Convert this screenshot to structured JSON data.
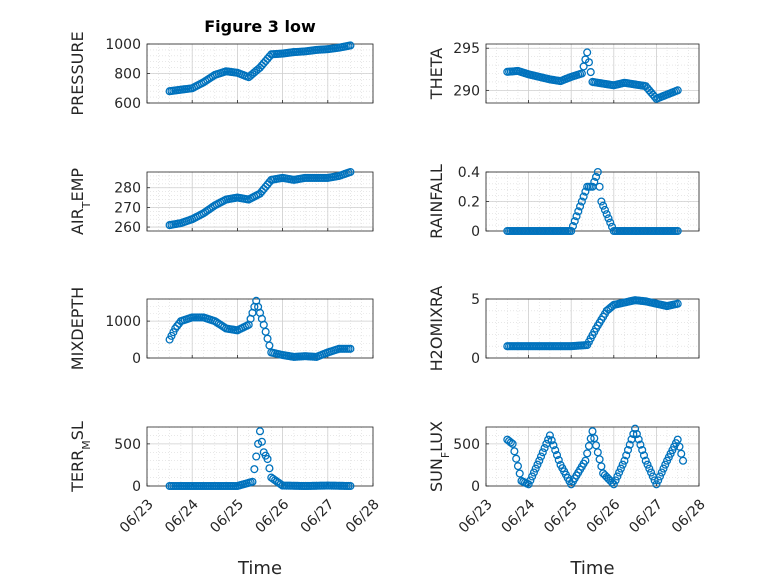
{
  "figure_title": "Figure 3 low",
  "marker_color": "#0072BD",
  "chart_data": [
    {
      "type": "scatter",
      "ylabel": "PRESSURE",
      "ylabel_sub": "",
      "xlabel": "",
      "title": "Figure 3 low",
      "xlim": [
        "06/23",
        "06/28"
      ],
      "ylim": [
        600,
        1000
      ],
      "yticks": [
        600,
        800,
        1000
      ],
      "grid": true,
      "points": [
        [
          "06/23 12:00",
          680
        ],
        [
          "06/23 18:00",
          690
        ],
        [
          "06/24 00:00",
          700
        ],
        [
          "06/24 06:00",
          740
        ],
        [
          "06/24 12:00",
          790
        ],
        [
          "06/24 18:00",
          815
        ],
        [
          "06/25 00:00",
          805
        ],
        [
          "06/25 06:00",
          775
        ],
        [
          "06/25 12:00",
          840
        ],
        [
          "06/25 18:00",
          930
        ],
        [
          "06/26 00:00",
          935
        ],
        [
          "06/26 06:00",
          945
        ],
        [
          "06/26 12:00",
          950
        ],
        [
          "06/26 18:00",
          960
        ],
        [
          "06/27 00:00",
          965
        ],
        [
          "06/27 06:00",
          975
        ],
        [
          "06/27 12:00",
          990
        ]
      ]
    },
    {
      "type": "scatter",
      "ylabel": "THETA",
      "ylabel_sub": "",
      "xlabel": "",
      "title": "",
      "xlim": [
        "06/23",
        "06/28"
      ],
      "ylim": [
        288.5,
        295.5
      ],
      "yticks": [
        290,
        295
      ],
      "grid": true,
      "points": [
        [
          "06/23 12:00",
          292.2
        ],
        [
          "06/23 18:00",
          292.3
        ],
        [
          "06/24 00:00",
          291.9
        ],
        [
          "06/24 06:00",
          291.6
        ],
        [
          "06/24 12:00",
          291.3
        ],
        [
          "06/24 18:00",
          291.1
        ],
        [
          "06/25 00:00",
          291.6
        ],
        [
          "06/25 06:00",
          292.0
        ],
        [
          "06/25 09:00",
          294.5
        ],
        [
          "06/25 12:00",
          291.0
        ],
        [
          "06/25 18:00",
          290.8
        ],
        [
          "06/26 00:00",
          290.6
        ],
        [
          "06/26 06:00",
          290.9
        ],
        [
          "06/26 12:00",
          290.7
        ],
        [
          "06/26 18:00",
          290.5
        ],
        [
          "06/27 00:00",
          289.0
        ],
        [
          "06/27 06:00",
          289.5
        ],
        [
          "06/27 12:00",
          290.0
        ]
      ]
    },
    {
      "type": "scatter",
      "ylabel": "AIR",
      "ylabel_sub": "T",
      "ylabel_rest": "EMP",
      "xlabel": "",
      "title": "",
      "xlim": [
        "06/23",
        "06/28"
      ],
      "ylim": [
        258,
        288
      ],
      "yticks": [
        260,
        270,
        280
      ],
      "grid": true,
      "points": [
        [
          "06/23 12:00",
          261
        ],
        [
          "06/23 18:00",
          262
        ],
        [
          "06/24 00:00",
          264
        ],
        [
          "06/24 06:00",
          267
        ],
        [
          "06/24 12:00",
          271
        ],
        [
          "06/24 18:00",
          274
        ],
        [
          "06/25 00:00",
          275
        ],
        [
          "06/25 06:00",
          274
        ],
        [
          "06/25 12:00",
          277
        ],
        [
          "06/25 18:00",
          284
        ],
        [
          "06/26 00:00",
          285
        ],
        [
          "06/26 06:00",
          284
        ],
        [
          "06/26 12:00",
          285
        ],
        [
          "06/26 18:00",
          285
        ],
        [
          "06/27 00:00",
          285
        ],
        [
          "06/27 06:00",
          286
        ],
        [
          "06/27 12:00",
          288
        ]
      ]
    },
    {
      "type": "scatter",
      "ylabel": "RAINFALL",
      "ylabel_sub": "",
      "xlabel": "",
      "title": "",
      "xlim": [
        "06/23",
        "06/28"
      ],
      "ylim": [
        0,
        0.4
      ],
      "yticks": [
        0,
        0.2,
        0.4
      ],
      "grid": true,
      "points": [
        [
          "06/23 12:00",
          0
        ],
        [
          "06/24 00:00",
          0
        ],
        [
          "06/24 12:00",
          0
        ],
        [
          "06/25 00:00",
          0
        ],
        [
          "06/25 09:00",
          0.3
        ],
        [
          "06/25 12:00",
          0.3
        ],
        [
          "06/25 15:00",
          0.4
        ],
        [
          "06/25 17:00",
          0.2
        ],
        [
          "06/26 00:00",
          0
        ],
        [
          "06/26 12:00",
          0
        ],
        [
          "06/27 00:00",
          0
        ],
        [
          "06/27 12:00",
          0
        ]
      ]
    },
    {
      "type": "scatter",
      "ylabel": "MIXDEPTH",
      "ylabel_sub": "",
      "xlabel": "",
      "title": "",
      "xlim": [
        "06/23",
        "06/28"
      ],
      "ylim": [
        0,
        1600
      ],
      "yticks": [
        0,
        1000
      ],
      "grid": true,
      "points": [
        [
          "06/23 12:00",
          500
        ],
        [
          "06/23 15:00",
          800
        ],
        [
          "06/23 18:00",
          1000
        ],
        [
          "06/24 00:00",
          1100
        ],
        [
          "06/24 06:00",
          1100
        ],
        [
          "06/24 12:00",
          1000
        ],
        [
          "06/24 18:00",
          800
        ],
        [
          "06/25 00:00",
          750
        ],
        [
          "06/25 06:00",
          900
        ],
        [
          "06/25 10:00",
          1550
        ],
        [
          "06/25 14:00",
          900
        ],
        [
          "06/25 18:00",
          150
        ],
        [
          "06/26 00:00",
          80
        ],
        [
          "06/26 06:00",
          30
        ],
        [
          "06/26 12:00",
          50
        ],
        [
          "06/26 18:00",
          30
        ],
        [
          "06/27 00:00",
          150
        ],
        [
          "06/27 06:00",
          250
        ],
        [
          "06/27 12:00",
          250
        ]
      ]
    },
    {
      "type": "scatter",
      "ylabel": "H2OMIXRA",
      "ylabel_sub": "",
      "xlabel": "",
      "title": "",
      "xlim": [
        "06/23",
        "06/28"
      ],
      "ylim": [
        0,
        5
      ],
      "yticks": [
        0,
        5
      ],
      "grid": true,
      "points": [
        [
          "06/23 12:00",
          1.0
        ],
        [
          "06/24 00:00",
          1.0
        ],
        [
          "06/24 12:00",
          1.0
        ],
        [
          "06/25 00:00",
          1.0
        ],
        [
          "06/25 09:00",
          1.1
        ],
        [
          "06/25 14:00",
          2.5
        ],
        [
          "06/25 20:00",
          4.0
        ],
        [
          "06/26 00:00",
          4.5
        ],
        [
          "06/26 06:00",
          4.7
        ],
        [
          "06/26 12:00",
          4.9
        ],
        [
          "06/26 18:00",
          4.8
        ],
        [
          "06/27 00:00",
          4.6
        ],
        [
          "06/27 06:00",
          4.4
        ],
        [
          "06/27 12:00",
          4.6
        ]
      ]
    },
    {
      "type": "scatter",
      "ylabel": "TERR",
      "ylabel_sub": "M",
      "ylabel_rest": "SL",
      "xlabel": "Time",
      "title": "",
      "xlim": [
        "06/23",
        "06/28"
      ],
      "ylim": [
        0,
        700
      ],
      "yticks": [
        0,
        500
      ],
      "grid": true,
      "xticks": [
        "06/23",
        "06/24",
        "06/25",
        "06/26",
        "06/27",
        "06/28"
      ],
      "points": [
        [
          "06/23 12:00",
          0
        ],
        [
          "06/24 00:00",
          0
        ],
        [
          "06/24 12:00",
          0
        ],
        [
          "06/25 00:00",
          0
        ],
        [
          "06/25 08:00",
          50
        ],
        [
          "06/25 10:00",
          350
        ],
        [
          "06/25 12:00",
          650
        ],
        [
          "06/25 14:00",
          400
        ],
        [
          "06/25 16:00",
          320
        ],
        [
          "06/25 18:00",
          100
        ],
        [
          "06/26 00:00",
          5
        ],
        [
          "06/26 12:00",
          0
        ],
        [
          "06/27 00:00",
          5
        ],
        [
          "06/27 12:00",
          0
        ]
      ]
    },
    {
      "type": "scatter",
      "ylabel": "SUN",
      "ylabel_sub": "F",
      "ylabel_rest": "LUX",
      "xlabel": "Time",
      "title": "",
      "xlim": [
        "06/23",
        "06/28"
      ],
      "ylim": [
        0,
        700
      ],
      "yticks": [
        0,
        500
      ],
      "grid": true,
      "xticks": [
        "06/23",
        "06/24",
        "06/25",
        "06/26",
        "06/27",
        "06/28"
      ],
      "points": [
        [
          "06/23 12:00",
          550
        ],
        [
          "06/23 15:00",
          500
        ],
        [
          "06/23 20:00",
          60
        ],
        [
          "06/24 00:00",
          20
        ],
        [
          "06/24 06:00",
          300
        ],
        [
          "06/24 12:00",
          600
        ],
        [
          "06/24 18:00",
          250
        ],
        [
          "06/25 00:00",
          20
        ],
        [
          "06/25 08:00",
          300
        ],
        [
          "06/25 12:00",
          650
        ],
        [
          "06/25 18:00",
          150
        ],
        [
          "06/26 00:00",
          20
        ],
        [
          "06/26 06:00",
          300
        ],
        [
          "06/26 12:00",
          680
        ],
        [
          "06/26 18:00",
          300
        ],
        [
          "06/27 00:00",
          20
        ],
        [
          "06/27 06:00",
          300
        ],
        [
          "06/27 12:00",
          550
        ],
        [
          "06/27 15:00",
          300
        ]
      ]
    }
  ]
}
